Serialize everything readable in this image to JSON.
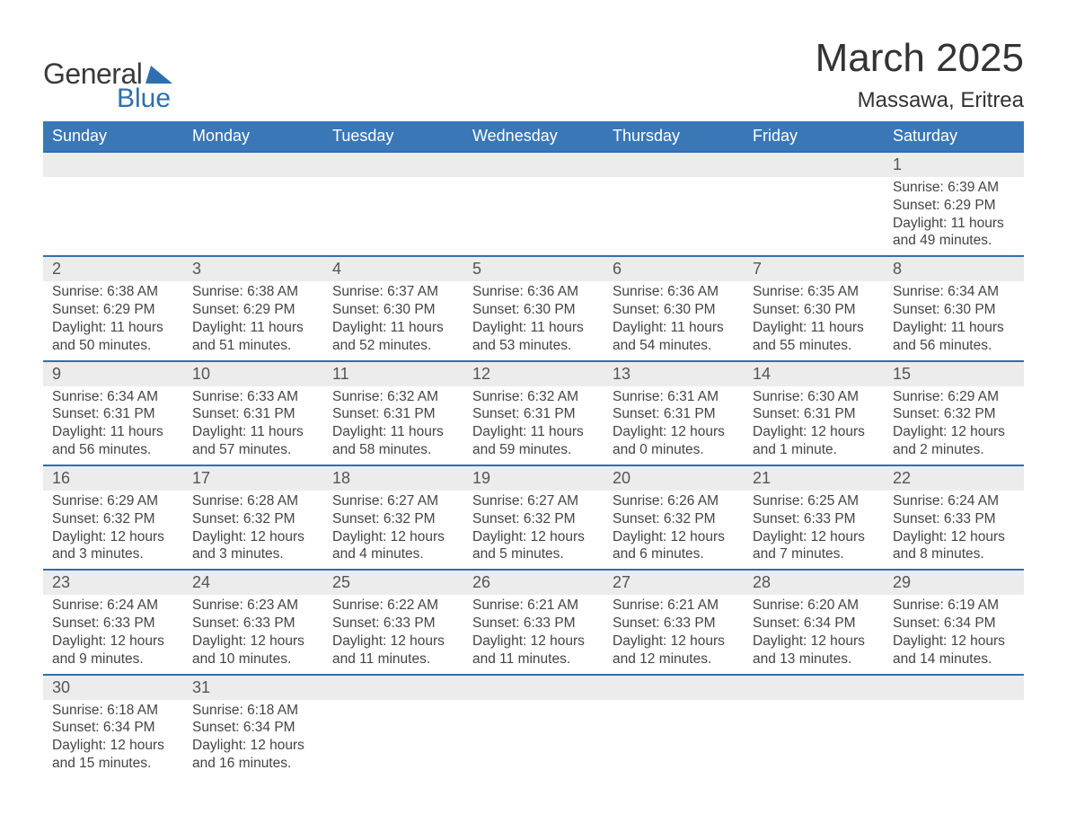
{
  "logo": {
    "text_top": "General",
    "text_bottom": "Blue",
    "triangle_color": "#2f6fb0"
  },
  "title": "March 2025",
  "location": "Massawa, Eritrea",
  "colors": {
    "header_bg": "#3a77b6",
    "header_text": "#ffffff",
    "row_border": "#2f6fb0",
    "daynum_bg": "#ececec",
    "body_text": "#444444"
  },
  "weekdays": [
    "Sunday",
    "Monday",
    "Tuesday",
    "Wednesday",
    "Thursday",
    "Friday",
    "Saturday"
  ],
  "weeks": [
    [
      null,
      null,
      null,
      null,
      null,
      null,
      {
        "n": "1",
        "sr": "Sunrise: 6:39 AM",
        "ss": "Sunset: 6:29 PM",
        "d1": "Daylight: 11 hours",
        "d2": "and 49 minutes."
      }
    ],
    [
      {
        "n": "2",
        "sr": "Sunrise: 6:38 AM",
        "ss": "Sunset: 6:29 PM",
        "d1": "Daylight: 11 hours",
        "d2": "and 50 minutes."
      },
      {
        "n": "3",
        "sr": "Sunrise: 6:38 AM",
        "ss": "Sunset: 6:29 PM",
        "d1": "Daylight: 11 hours",
        "d2": "and 51 minutes."
      },
      {
        "n": "4",
        "sr": "Sunrise: 6:37 AM",
        "ss": "Sunset: 6:30 PM",
        "d1": "Daylight: 11 hours",
        "d2": "and 52 minutes."
      },
      {
        "n": "5",
        "sr": "Sunrise: 6:36 AM",
        "ss": "Sunset: 6:30 PM",
        "d1": "Daylight: 11 hours",
        "d2": "and 53 minutes."
      },
      {
        "n": "6",
        "sr": "Sunrise: 6:36 AM",
        "ss": "Sunset: 6:30 PM",
        "d1": "Daylight: 11 hours",
        "d2": "and 54 minutes."
      },
      {
        "n": "7",
        "sr": "Sunrise: 6:35 AM",
        "ss": "Sunset: 6:30 PM",
        "d1": "Daylight: 11 hours",
        "d2": "and 55 minutes."
      },
      {
        "n": "8",
        "sr": "Sunrise: 6:34 AM",
        "ss": "Sunset: 6:30 PM",
        "d1": "Daylight: 11 hours",
        "d2": "and 56 minutes."
      }
    ],
    [
      {
        "n": "9",
        "sr": "Sunrise: 6:34 AM",
        "ss": "Sunset: 6:31 PM",
        "d1": "Daylight: 11 hours",
        "d2": "and 56 minutes."
      },
      {
        "n": "10",
        "sr": "Sunrise: 6:33 AM",
        "ss": "Sunset: 6:31 PM",
        "d1": "Daylight: 11 hours",
        "d2": "and 57 minutes."
      },
      {
        "n": "11",
        "sr": "Sunrise: 6:32 AM",
        "ss": "Sunset: 6:31 PM",
        "d1": "Daylight: 11 hours",
        "d2": "and 58 minutes."
      },
      {
        "n": "12",
        "sr": "Sunrise: 6:32 AM",
        "ss": "Sunset: 6:31 PM",
        "d1": "Daylight: 11 hours",
        "d2": "and 59 minutes."
      },
      {
        "n": "13",
        "sr": "Sunrise: 6:31 AM",
        "ss": "Sunset: 6:31 PM",
        "d1": "Daylight: 12 hours",
        "d2": "and 0 minutes."
      },
      {
        "n": "14",
        "sr": "Sunrise: 6:30 AM",
        "ss": "Sunset: 6:31 PM",
        "d1": "Daylight: 12 hours",
        "d2": "and 1 minute."
      },
      {
        "n": "15",
        "sr": "Sunrise: 6:29 AM",
        "ss": "Sunset: 6:32 PM",
        "d1": "Daylight: 12 hours",
        "d2": "and 2 minutes."
      }
    ],
    [
      {
        "n": "16",
        "sr": "Sunrise: 6:29 AM",
        "ss": "Sunset: 6:32 PM",
        "d1": "Daylight: 12 hours",
        "d2": "and 3 minutes."
      },
      {
        "n": "17",
        "sr": "Sunrise: 6:28 AM",
        "ss": "Sunset: 6:32 PM",
        "d1": "Daylight: 12 hours",
        "d2": "and 3 minutes."
      },
      {
        "n": "18",
        "sr": "Sunrise: 6:27 AM",
        "ss": "Sunset: 6:32 PM",
        "d1": "Daylight: 12 hours",
        "d2": "and 4 minutes."
      },
      {
        "n": "19",
        "sr": "Sunrise: 6:27 AM",
        "ss": "Sunset: 6:32 PM",
        "d1": "Daylight: 12 hours",
        "d2": "and 5 minutes."
      },
      {
        "n": "20",
        "sr": "Sunrise: 6:26 AM",
        "ss": "Sunset: 6:32 PM",
        "d1": "Daylight: 12 hours",
        "d2": "and 6 minutes."
      },
      {
        "n": "21",
        "sr": "Sunrise: 6:25 AM",
        "ss": "Sunset: 6:33 PM",
        "d1": "Daylight: 12 hours",
        "d2": "and 7 minutes."
      },
      {
        "n": "22",
        "sr": "Sunrise: 6:24 AM",
        "ss": "Sunset: 6:33 PM",
        "d1": "Daylight: 12 hours",
        "d2": "and 8 minutes."
      }
    ],
    [
      {
        "n": "23",
        "sr": "Sunrise: 6:24 AM",
        "ss": "Sunset: 6:33 PM",
        "d1": "Daylight: 12 hours",
        "d2": "and 9 minutes."
      },
      {
        "n": "24",
        "sr": "Sunrise: 6:23 AM",
        "ss": "Sunset: 6:33 PM",
        "d1": "Daylight: 12 hours",
        "d2": "and 10 minutes."
      },
      {
        "n": "25",
        "sr": "Sunrise: 6:22 AM",
        "ss": "Sunset: 6:33 PM",
        "d1": "Daylight: 12 hours",
        "d2": "and 11 minutes."
      },
      {
        "n": "26",
        "sr": "Sunrise: 6:21 AM",
        "ss": "Sunset: 6:33 PM",
        "d1": "Daylight: 12 hours",
        "d2": "and 11 minutes."
      },
      {
        "n": "27",
        "sr": "Sunrise: 6:21 AM",
        "ss": "Sunset: 6:33 PM",
        "d1": "Daylight: 12 hours",
        "d2": "and 12 minutes."
      },
      {
        "n": "28",
        "sr": "Sunrise: 6:20 AM",
        "ss": "Sunset: 6:34 PM",
        "d1": "Daylight: 12 hours",
        "d2": "and 13 minutes."
      },
      {
        "n": "29",
        "sr": "Sunrise: 6:19 AM",
        "ss": "Sunset: 6:34 PM",
        "d1": "Daylight: 12 hours",
        "d2": "and 14 minutes."
      }
    ],
    [
      {
        "n": "30",
        "sr": "Sunrise: 6:18 AM",
        "ss": "Sunset: 6:34 PM",
        "d1": "Daylight: 12 hours",
        "d2": "and 15 minutes."
      },
      {
        "n": "31",
        "sr": "Sunrise: 6:18 AM",
        "ss": "Sunset: 6:34 PM",
        "d1": "Daylight: 12 hours",
        "d2": "and 16 minutes."
      },
      null,
      null,
      null,
      null,
      null
    ]
  ]
}
